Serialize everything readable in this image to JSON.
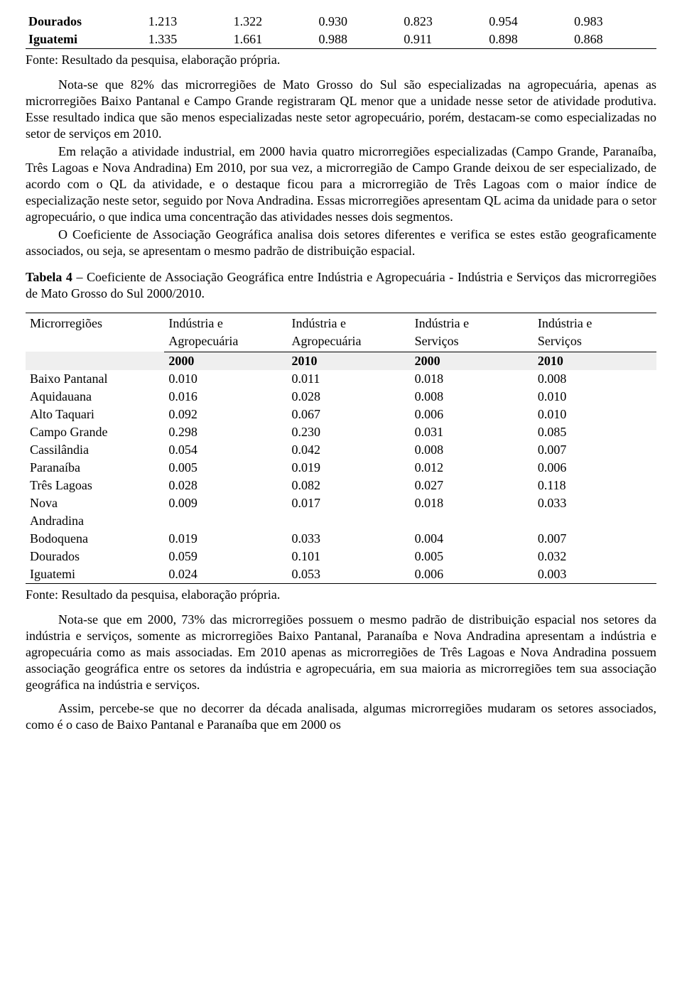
{
  "top_table": {
    "rows": [
      {
        "label": "Dourados",
        "v": [
          "1.213",
          "1.322",
          "0.930",
          "0.823",
          "0.954",
          "0.983"
        ]
      },
      {
        "label": "Iguatemi",
        "v": [
          "1.335",
          "1.661",
          "0.988",
          "0.911",
          "0.898",
          "0.868"
        ]
      }
    ]
  },
  "fonte": "Fonte: Resultado da pesquisa, elaboração própria.",
  "p1": "Nota-se que 82% das microrregiões de Mato Grosso do Sul são especializadas na agropecuária, apenas as microrregiões Baixo Pantanal e Campo Grande registraram QL menor que a unidade nesse setor de atividade produtiva. Esse resultado indica que são menos especializadas neste setor agropecuário, porém, destacam-se  como especializadas no setor de serviços em 2010.",
  "p2": "Em relação a atividade industrial, em 2000 havia quatro microrregiões especializadas (Campo Grande, Paranaíba, Três Lagoas e Nova Andradina) Em 2010, por sua vez,  a microrregião de Campo Grande deixou de ser especializado, de acordo com o QL da atividade, e o destaque ficou para a microrregião de Três Lagoas com o maior índice de especialização neste setor, seguido por Nova Andradina. Essas microrregiões apresentam QL acima da unidade para o setor agropecuário, o que indica uma concentração das atividades nesses dois segmentos.",
  "p3": "O Coeficiente de Associação Geográfica analisa dois setores diferentes e verifica se estes estão geograficamente associados, ou seja, se apresentam o mesmo padrão de distribuição espacial.",
  "t4_title_bold": "Tabela 4",
  "t4_title_rest": " – Coeficiente de Associação Geográfica entre Indústria e Agropecuária  - Indústria e Serviços das microrregiões de Mato Grosso do Sul 2000/2010.",
  "t4": {
    "col0_label": "Microrregiões",
    "header_top": [
      "Indústria e",
      "Indústria e",
      "Indústria e",
      "Indústria e"
    ],
    "header_bot": [
      "Agropecuária",
      "Agropecuária",
      "Serviços",
      "Serviços"
    ],
    "years": [
      "2000",
      "2010",
      "2000",
      "2010"
    ],
    "rows": [
      {
        "label": "Baixo Pantanal",
        "v": [
          "0.010",
          "0.011",
          "0.018",
          "0.008"
        ]
      },
      {
        "label": "Aquidauana",
        "v": [
          "0.016",
          "0.028",
          "0.008",
          "0.010"
        ]
      },
      {
        "label": "Alto Taquari",
        "v": [
          "0.092",
          "0.067",
          "0.006",
          "0.010"
        ]
      },
      {
        "label": "Campo Grande",
        "v": [
          "0.298",
          "0.230",
          "0.031",
          "0.085"
        ]
      },
      {
        "label": "Cassilândia",
        "v": [
          "0.054",
          "0.042",
          "0.008",
          "0.007"
        ]
      },
      {
        "label": "Paranaíba",
        "v": [
          "0.005",
          "0.019",
          "0.012",
          "0.006"
        ]
      },
      {
        "label": "Três Lagoas",
        "v": [
          "0.028",
          "0.082",
          "0.027",
          "0.118"
        ]
      },
      {
        "label": "Nova Andradina",
        "v": [
          "0.009",
          "0.017",
          "0.018",
          "0.033"
        ],
        "wrap_label": [
          "Nova",
          "Andradina"
        ]
      },
      {
        "label": "Bodoquena",
        "v": [
          "0.019",
          "0.033",
          "0.004",
          "0.007"
        ]
      },
      {
        "label": "Dourados",
        "v": [
          "0.059",
          "0.101",
          "0.005",
          "0.032"
        ]
      },
      {
        "label": "Iguatemi",
        "v": [
          "0.024",
          "0.053",
          "0.006",
          "0.003"
        ]
      }
    ]
  },
  "p4": "Nota-se que em 2000, 73% das microrregiões possuem o mesmo padrão de distribuição espacial nos setores da indústria e serviços, somente as microrregiões Baixo Pantanal, Paranaíba e Nova Andradina apresentam a indústria e agropecuária como as mais associadas. Em 2010 apenas as microrregiões de Três Lagoas e Nova Andradina possuem associação geográfica entre os setores da indústria e agropecuária, em sua maioria as microrregiões tem sua associação geográfica na indústria e serviços.",
  "p5": "Assim, percebe-se que no decorrer da década analisada, algumas microrregiões mudaram os setores associados, como é o caso de Baixo Pantanal e Paranaíba que em 2000 os"
}
